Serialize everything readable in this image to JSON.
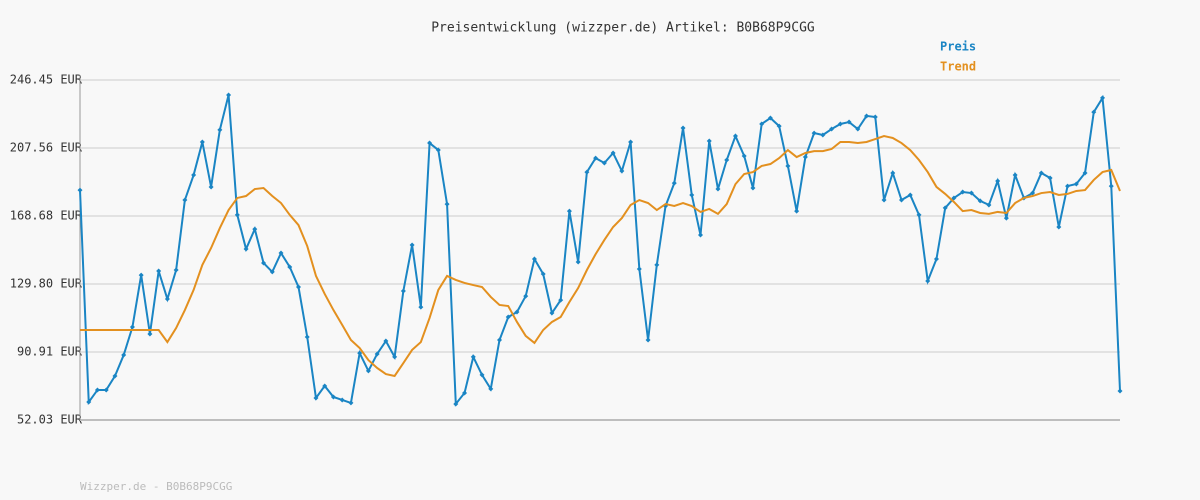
{
  "chart_data": {
    "type": "line",
    "title": "Preisentwicklung (wizzper.de) Artikel: B0B68P9CGG",
    "footer": "Wizzper.de - B0B68P9CGG",
    "legend": "top-right",
    "grid": true,
    "ylim": [
      52.03,
      246.45
    ],
    "yticks": [
      {
        "value": 52.03,
        "label": "52.03 EUR"
      },
      {
        "value": 90.91,
        "label": "90.91 EUR"
      },
      {
        "value": 129.8,
        "label": "129.80 EUR"
      },
      {
        "value": 168.68,
        "label": "168.68 EUR"
      },
      {
        "value": 207.56,
        "label": "207.56 EUR"
      },
      {
        "value": 246.45,
        "label": "246.45 EUR"
      }
    ],
    "series": [
      {
        "name": "Preis",
        "color": "#1a85c4",
        "markers": true,
        "values": [
          183.5,
          62.3,
          69.2,
          69.2,
          77.2,
          89.2,
          105.2,
          134.9,
          101.2,
          137.2,
          121.2,
          137.8,
          177.8,
          192.1,
          211.0,
          185.3,
          217.9,
          237.9,
          169.3,
          149.8,
          161.2,
          141.8,
          136.7,
          147.5,
          139.5,
          128.1,
          99.5,
          64.6,
          71.5,
          65.2,
          63.5,
          61.8,
          90.3,
          80.1,
          89.8,
          97.2,
          88.1,
          125.8,
          152.1,
          116.6,
          210.4,
          206.4,
          175.5,
          61.2,
          67.5,
          88.1,
          77.8,
          69.8,
          97.8,
          110.9,
          113.8,
          122.9,
          144.1,
          135.5,
          113.2,
          120.6,
          171.5,
          142.4,
          193.8,
          201.8,
          199.0,
          204.7,
          194.4,
          211.0,
          138.4,
          97.8,
          140.7,
          174.4,
          187.5,
          219.0,
          180.7,
          157.8,
          211.6,
          184.1,
          200.7,
          214.4,
          203.0,
          184.7,
          221.3,
          224.7,
          220.1,
          197.3,
          171.5,
          202.4,
          216.1,
          215.0,
          218.4,
          221.3,
          222.4,
          218.4,
          225.9,
          225.3,
          177.8,
          193.3,
          177.8,
          180.7,
          169.3,
          131.5,
          144.1,
          173.3,
          179.0,
          182.4,
          181.8,
          177.3,
          175.0,
          188.7,
          167.5,
          192.1,
          179.0,
          181.8,
          193.3,
          190.4,
          162.4,
          185.8,
          187.0,
          193.3,
          228.1,
          236.2,
          185.8,
          68.6
        ]
      },
      {
        "name": "Trend",
        "color": "#e3901f",
        "markers": false,
        "values": [
          103.5,
          103.5,
          103.5,
          103.5,
          103.5,
          103.5,
          103.5,
          103.5,
          103.5,
          103.5,
          96.6,
          104.6,
          114.9,
          126.4,
          140.7,
          150.4,
          161.8,
          172.1,
          179.0,
          180.1,
          184.1,
          184.7,
          180.1,
          176.1,
          169.3,
          163.5,
          151.5,
          134.4,
          124.1,
          114.9,
          106.4,
          97.8,
          93.2,
          86.3,
          81.8,
          78.3,
          77.2,
          84.6,
          92.1,
          96.6,
          110.4,
          126.4,
          134.4,
          132.1,
          130.4,
          129.2,
          128.1,
          122.4,
          117.8,
          117.2,
          108.1,
          100.1,
          96.1,
          103.5,
          108.1,
          110.9,
          119.5,
          127.5,
          137.8,
          146.9,
          155.0,
          162.4,
          167.5,
          175.0,
          177.8,
          176.1,
          172.1,
          175.5,
          174.4,
          176.1,
          174.4,
          171.0,
          172.7,
          169.9,
          175.5,
          186.9,
          192.7,
          193.8,
          197.3,
          198.4,
          201.8,
          206.4,
          202.4,
          204.7,
          205.8,
          205.8,
          207.0,
          211.0,
          211.0,
          210.4,
          211.0,
          212.7,
          214.4,
          213.3,
          210.4,
          206.4,
          200.7,
          193.8,
          185.3,
          181.3,
          176.7,
          171.5,
          172.1,
          170.4,
          169.9,
          171.0,
          170.4,
          176.1,
          179.0,
          180.1,
          181.8,
          182.4,
          180.7,
          181.3,
          183.0,
          183.5,
          189.3,
          193.8,
          195.0,
          183.0
        ]
      }
    ]
  }
}
